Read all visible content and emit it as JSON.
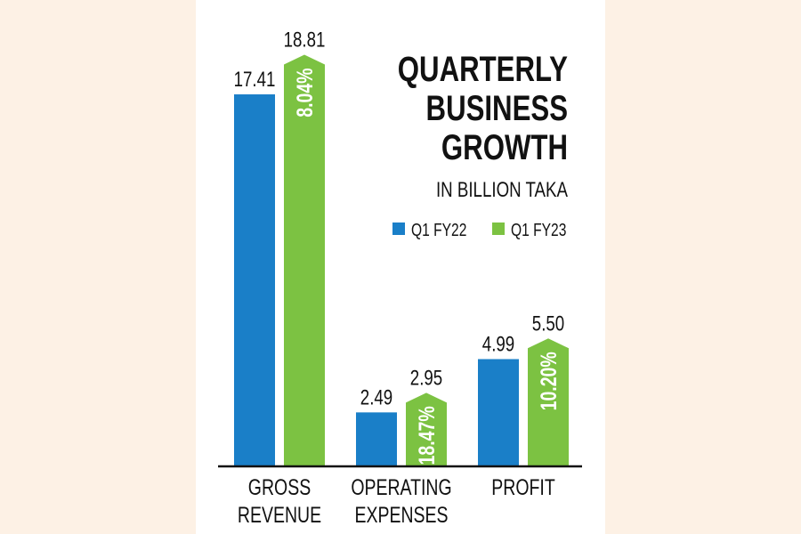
{
  "chart_data": {
    "type": "bar",
    "title": "QUARTERLY BUSINESS GROWTH",
    "title_lines": [
      "QUARTERLY",
      "BUSINESS",
      "GROWTH"
    ],
    "subtitle": "IN BILLION TAKA",
    "categories": [
      [
        "GROSS",
        "REVENUE"
      ],
      [
        "OPERATING",
        "EXPENSES"
      ],
      [
        "PROFIT"
      ]
    ],
    "series": [
      {
        "name": "Q1 FY22",
        "color": "#1a7fc8",
        "values": [
          17.41,
          2.49,
          4.99
        ],
        "labels": [
          "17.41",
          "2.49",
          "4.99"
        ]
      },
      {
        "name": "Q1 FY23",
        "color": "#7cc242",
        "values": [
          18.81,
          2.95,
          5.5
        ],
        "labels": [
          "18.81",
          "2.95",
          "5.50"
        ]
      }
    ],
    "growth_labels": [
      "8.04%",
      "18.47%",
      "10.20%"
    ],
    "legend_position": "top-right",
    "grid": false,
    "ylim": [
      0,
      19
    ]
  }
}
